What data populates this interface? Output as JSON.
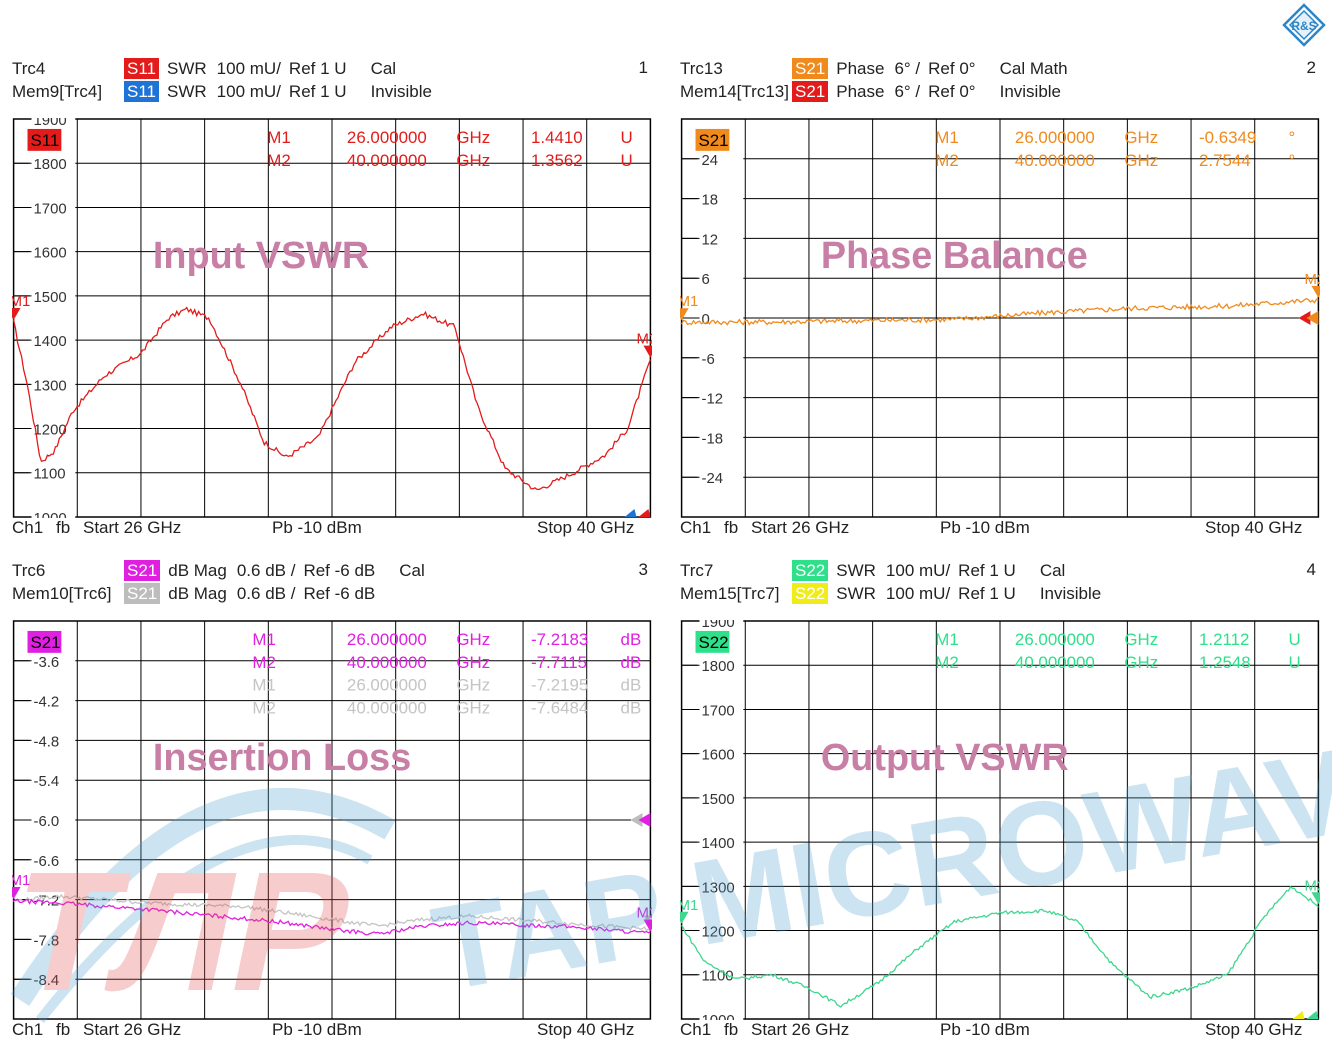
{
  "panels": [
    {
      "number": "1",
      "title": "Input VSWR",
      "title_color": "#c87fa6",
      "rows": [
        {
          "trace": "Trc4",
          "badge": "S11",
          "badge_color": "#e31b1b",
          "fmt": "SWR",
          "scale": "100 mU/",
          "ref": "Ref 1 U",
          "tag": "Cal"
        },
        {
          "trace": "Mem9[Trc4]",
          "badge": "S11",
          "badge_color": "#1e73d6",
          "fmt": "SWR",
          "scale": "100 mU/",
          "ref": "Ref 1 U",
          "tag": "Invisible"
        }
      ],
      "plot_badge": "S11",
      "plot_badge_color": "#e31b1b",
      "markers": [
        {
          "name": "M1",
          "freq": "26.000000",
          "unit": "GHz",
          "value": "1.4410",
          "vunit": "U",
          "color": "#e31b1b"
        },
        {
          "name": "M2",
          "freq": "40.000000",
          "unit": "GHz",
          "value": "1.3562",
          "vunit": "U",
          "color": "#e31b1b"
        }
      ],
      "footer": {
        "ch": "Ch1",
        "fb": "fb",
        "start": "Start  26 GHz",
        "pb": "Pb  -10 dBm",
        "stop": "Stop  40 GHz"
      },
      "chart_data": {
        "type": "line",
        "ylim": [
          1000,
          1900
        ],
        "xlim": [
          26,
          40
        ],
        "yticks": [
          "1900",
          "1800",
          "1700",
          "1600",
          "1500",
          "1400",
          "1300",
          "1200",
          "1100",
          "1000"
        ],
        "ref_color": "#1e73d6",
        "series": [
          {
            "color": "#e31b1b",
            "noise": 6,
            "x": [
              26,
              26.3,
              26.6,
              26.9,
              27.3,
              28.0,
              28.8,
              29.4,
              29.8,
              30.3,
              31.0,
              31.5,
              32.0,
              32.7,
              33.5,
              34.3,
              35.0,
              35.7,
              36.2,
              36.8,
              37.5,
              38.3,
              39.0,
              39.5,
              40.0
            ],
            "y": [
              1441,
              1300,
              1125,
              1150,
              1240,
              1320,
              1370,
              1450,
              1470,
              1450,
              1300,
              1170,
              1135,
              1180,
              1350,
              1430,
              1460,
              1430,
              1250,
              1110,
              1060,
              1100,
              1140,
              1200,
              1356
            ]
          }
        ]
      }
    },
    {
      "number": "2",
      "title": "Phase Balance",
      "title_color": "#c87fa6",
      "rows": [
        {
          "trace": "Trc13",
          "badge": "S21",
          "badge_color": "#f08a1c",
          "fmt": "Phase",
          "scale": "6° /",
          "ref": "Ref 0°",
          "tag": "Cal Math"
        },
        {
          "trace": "Mem14[Trc13]",
          "badge": "S21",
          "badge_color": "#e31b1b",
          "fmt": "Phase",
          "scale": "6° /",
          "ref": "Ref 0°",
          "tag": "Invisible"
        }
      ],
      "plot_badge": "S21",
      "plot_badge_color": "#f08a1c",
      "markers": [
        {
          "name": "M1",
          "freq": "26.000000",
          "unit": "GHz",
          "value": "-0.6349",
          "vunit": "°",
          "color": "#f08a1c"
        },
        {
          "name": "M2",
          "freq": "40.000000",
          "unit": "GHz",
          "value": "2.7544",
          "vunit": "°",
          "color": "#f08a1c"
        }
      ],
      "footer": {
        "ch": "Ch1",
        "fb": "fb",
        "start": "Start  26 GHz",
        "pb": "Pb  -10 dBm",
        "stop": "Stop  40 GHz"
      },
      "chart_data": {
        "type": "line",
        "ylim": [
          -30,
          30
        ],
        "xlim": [
          26,
          40
        ],
        "yticks": [
          "",
          "24",
          "18",
          "12",
          "6",
          "0",
          "-6",
          "-12",
          "-18",
          "-24",
          ""
        ],
        "ref_color": "#e31b1b",
        "series": [
          {
            "color": "#f08a1c",
            "noise": 0.4,
            "x": [
              26,
              28,
              30,
              32,
              34,
              36,
              38,
              40
            ],
            "y": [
              -0.63,
              -0.6,
              -0.4,
              -0.2,
              0.8,
              1.5,
              1.8,
              2.75
            ]
          }
        ]
      }
    },
    {
      "number": "3",
      "title": "Insertion Loss",
      "title_color": "#c87fa6",
      "rows": [
        {
          "trace": "Trc6",
          "badge": "S21",
          "badge_color": "#e020e0",
          "fmt": "dB Mag",
          "scale": "0.6 dB /",
          "ref": "Ref -6 dB",
          "tag": "Cal"
        },
        {
          "trace": "Mem10[Trc6]",
          "badge": "S21",
          "badge_color": "#bdbdbd",
          "fmt": "dB Mag",
          "scale": "0.6 dB /",
          "ref": "Ref -6 dB",
          "tag": ""
        }
      ],
      "plot_badge": "S21",
      "plot_badge_color": "#e020e0",
      "markers": [
        {
          "name": "M1",
          "freq": "26.000000",
          "unit": "GHz",
          "value": "-7.2183",
          "vunit": "dB",
          "color": "#e020e0"
        },
        {
          "name": "M2",
          "freq": "40.000000",
          "unit": "GHz",
          "value": "-7.7115",
          "vunit": "dB",
          "color": "#e020e0"
        },
        {
          "name": "M1",
          "freq": "26.000000",
          "unit": "GHz",
          "value": "-7.2195",
          "vunit": "dB",
          "color": "#c4c4c4"
        },
        {
          "name": "M2",
          "freq": "40.000000",
          "unit": "GHz",
          "value": "-7.6484",
          "vunit": "dB",
          "color": "#c4c4c4"
        }
      ],
      "footer": {
        "ch": "Ch1",
        "fb": "fb",
        "start": "Start  26 GHz",
        "pb": "Pb  -10 dBm",
        "stop": "Stop  40 GHz"
      },
      "chart_data": {
        "type": "line",
        "ylim": [
          -9.0,
          -3.0
        ],
        "xlim": [
          26,
          40
        ],
        "yticks": [
          "",
          "-3.6",
          "-4.2",
          "-4.8",
          "-5.4",
          "-6.0",
          "-6.6",
          "-7.2",
          "-7.8",
          "-8.4",
          ""
        ],
        "ref_color": "#bdbdbd",
        "series": [
          {
            "color": "#c4c4c4",
            "noise": 0.03,
            "x": [
              26,
              27,
              28,
              29,
              30,
              31,
              32,
              33,
              34,
              35,
              36,
              37,
              38,
              39,
              40
            ],
            "y": [
              -7.22,
              -7.15,
              -7.2,
              -7.25,
              -7.28,
              -7.3,
              -7.4,
              -7.5,
              -7.6,
              -7.5,
              -7.45,
              -7.5,
              -7.55,
              -7.6,
              -7.65
            ]
          },
          {
            "color": "#e020e0",
            "noise": 0.03,
            "x": [
              26,
              27,
              28,
              29,
              30,
              31,
              32,
              33,
              34,
              35,
              36,
              37,
              38,
              39,
              40
            ],
            "y": [
              -7.22,
              -7.25,
              -7.3,
              -7.35,
              -7.42,
              -7.48,
              -7.55,
              -7.65,
              -7.72,
              -7.6,
              -7.55,
              -7.58,
              -7.6,
              -7.65,
              -7.71
            ]
          }
        ]
      }
    },
    {
      "number": "4",
      "title": "Output VSWR",
      "title_color": "#c87fa6",
      "rows": [
        {
          "trace": "Trc7",
          "badge": "S22",
          "badge_color": "#2ee08a",
          "fmt": "SWR",
          "scale": "100 mU/",
          "ref": "Ref 1 U",
          "tag": "Cal"
        },
        {
          "trace": "Mem15[Trc7]",
          "badge": "S22",
          "badge_color": "#f0ec1a",
          "fmt": "SWR",
          "scale": "100 mU/",
          "ref": "Ref 1 U",
          "tag": "Invisible"
        }
      ],
      "plot_badge": "S22",
      "plot_badge_color": "#2ee08a",
      "markers": [
        {
          "name": "M1",
          "freq": "26.000000",
          "unit": "GHz",
          "value": "1.2112",
          "vunit": "U",
          "color": "#2ee08a"
        },
        {
          "name": "M2",
          "freq": "40.000000",
          "unit": "GHz",
          "value": "1.2548",
          "vunit": "U",
          "color": "#2ee08a"
        }
      ],
      "footer": {
        "ch": "Ch1",
        "fb": "fb",
        "start": "Start  26 GHz",
        "pb": "Pb  -10 dBm",
        "stop": "Stop  40 GHz"
      },
      "chart_data": {
        "type": "line",
        "ylim": [
          1000,
          1900
        ],
        "xlim": [
          26,
          40
        ],
        "yticks": [
          "1900",
          "1800",
          "1700",
          "1600",
          "1500",
          "1400",
          "1300",
          "1200",
          "1100",
          "1000"
        ],
        "ref_color": "#f0ec1a",
        "series": [
          {
            "color": "#3fd68f",
            "noise": 4,
            "x": [
              26,
              26.5,
              27.2,
              28.0,
              28.8,
              29.5,
              30.3,
              31.2,
              32.0,
              33.0,
              34.0,
              34.7,
              35.5,
              36.3,
              37.2,
              38.0,
              38.8,
              39.4,
              40.0
            ],
            "y": [
              1211,
              1130,
              1090,
              1100,
              1070,
              1030,
              1080,
              1160,
              1220,
              1240,
              1245,
              1220,
              1120,
              1050,
              1070,
              1100,
              1230,
              1300,
              1255
            ]
          }
        ]
      }
    }
  ],
  "watermark": {
    "brand": "TAP MICROWAVE",
    "logo_text": "ТЛР",
    "color": "#9ec9e0"
  }
}
